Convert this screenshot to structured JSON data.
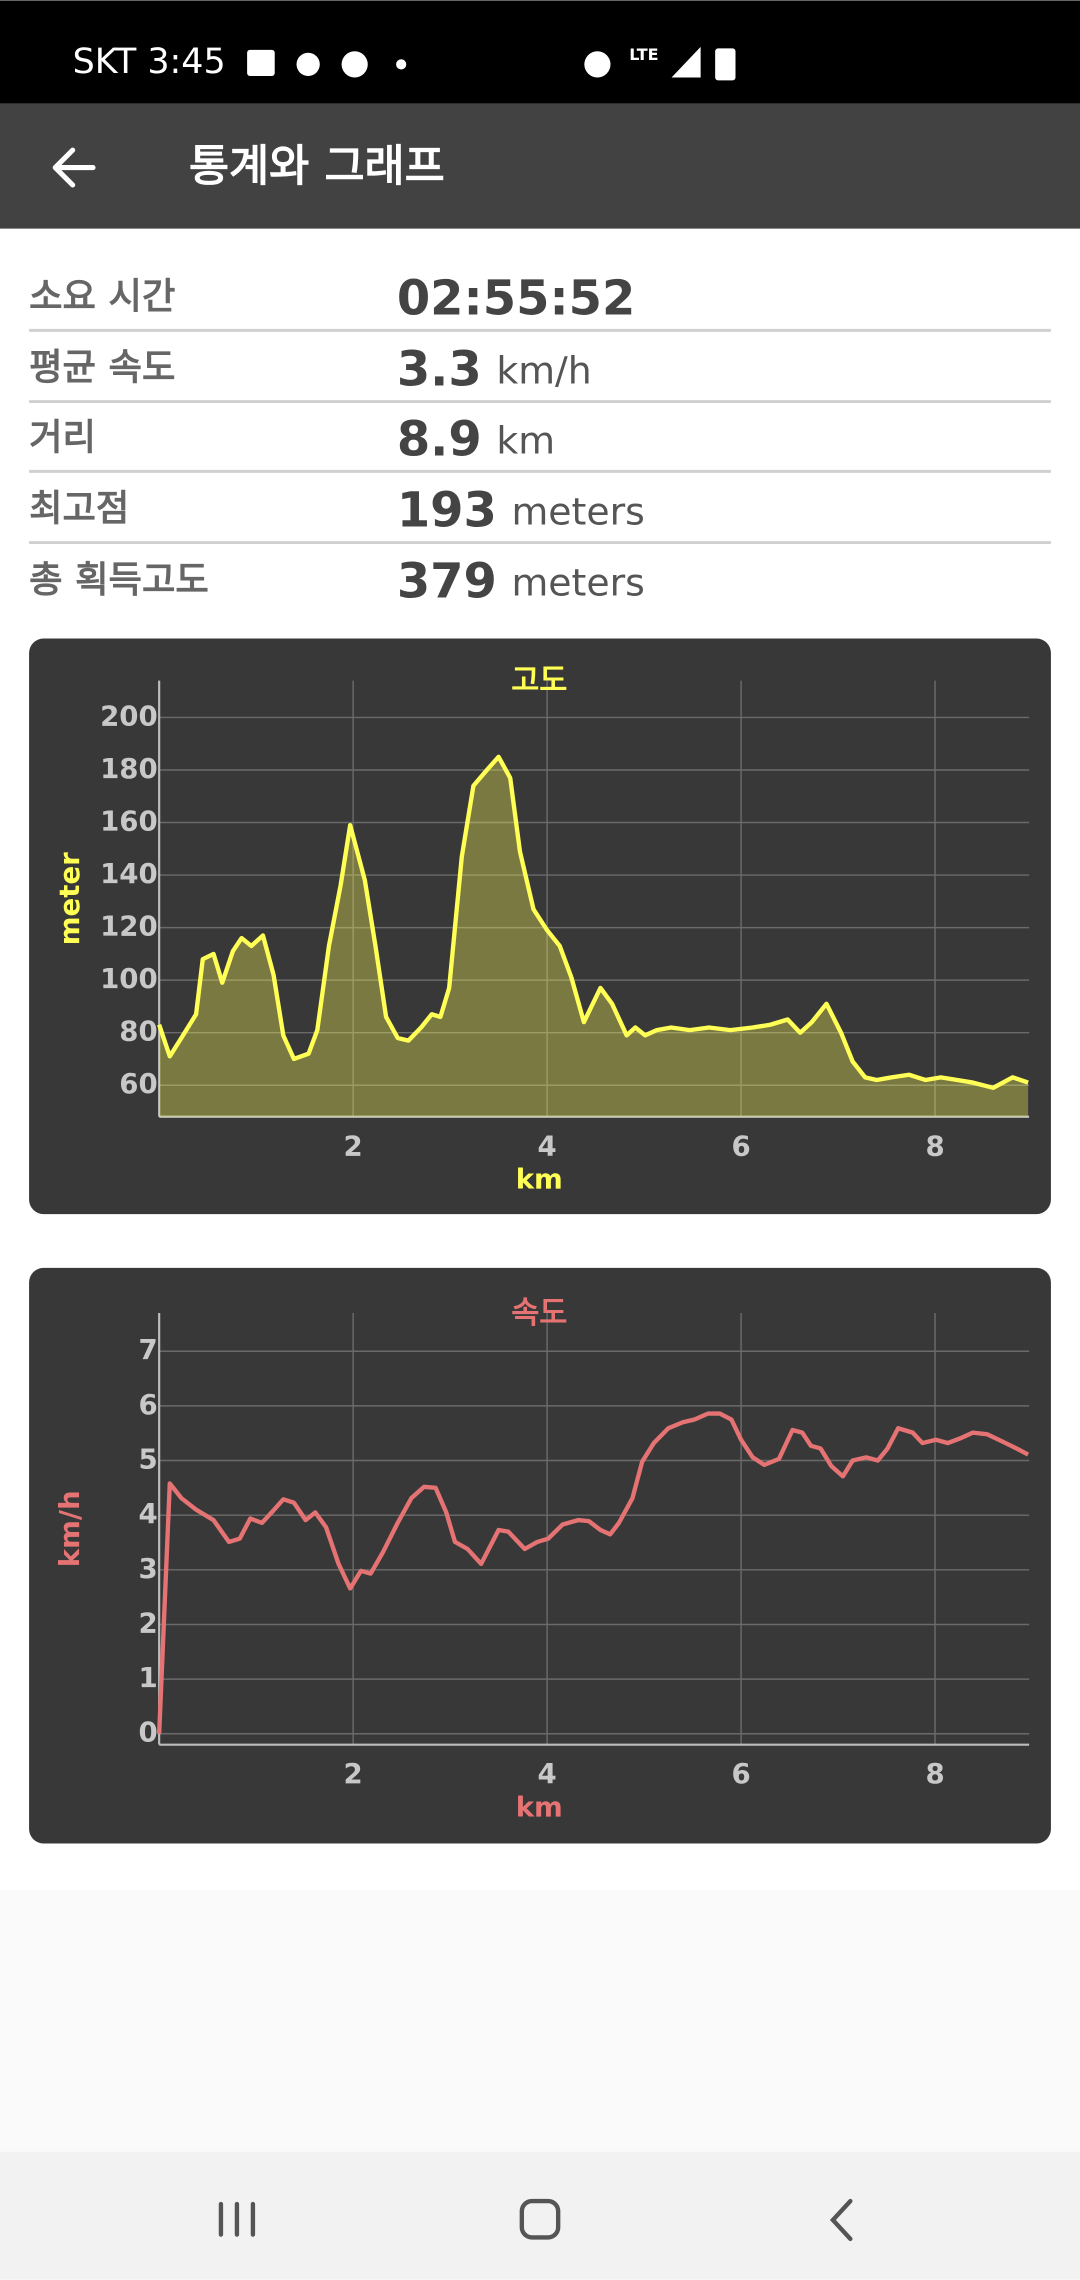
{
  "status_bar": {
    "carrier_time": "SKT 3:45",
    "network": "LTE"
  },
  "app_bar": {
    "title": "통계와 그래프"
  },
  "stats": [
    {
      "label": "소요 시간",
      "value": "02:55:52"
    },
    {
      "label": "평균 속도",
      "value": 3.3,
      "unit": "km/h"
    },
    {
      "label": "거리",
      "value": 8.9,
      "unit": "km"
    },
    {
      "label": "최고점",
      "value": 193,
      "unit": "meters"
    },
    {
      "label": "총 획득고도",
      "value": 379,
      "unit": "meters"
    }
  ],
  "chart_data": [
    {
      "type": "area",
      "title": "고도",
      "x_label": "km",
      "y_label": "meter",
      "color": "#ffff55",
      "grid": true,
      "xlim": [
        0,
        8.97
      ],
      "ylim": [
        48,
        214
      ],
      "xticks": [
        2,
        4,
        6,
        8
      ],
      "yticks": [
        60,
        80,
        100,
        120,
        140,
        160,
        180,
        200
      ],
      "x": [
        0,
        0.11,
        0.23,
        0.38,
        0.45,
        0.56,
        0.65,
        0.76,
        0.85,
        0.95,
        1.07,
        1.18,
        1.28,
        1.39,
        1.54,
        1.63,
        1.75,
        1.87,
        1.97,
        2.12,
        2.23,
        2.34,
        2.46,
        2.57,
        2.7,
        2.81,
        2.9,
        2.99,
        3.12,
        3.24,
        3.38,
        3.5,
        3.62,
        3.72,
        3.86,
        4.0,
        4.13,
        4.25,
        4.38,
        4.55,
        4.67,
        4.82,
        4.91,
        5.01,
        5.13,
        5.28,
        5.47,
        5.67,
        5.89,
        6.12,
        6.3,
        6.48,
        6.61,
        6.73,
        6.88,
        7.03,
        7.15,
        7.28,
        7.4,
        7.55,
        7.73,
        7.9,
        8.06,
        8.23,
        8.39,
        8.6,
        8.8,
        8.96
      ],
      "values": [
        83,
        71,
        78,
        87,
        108,
        110,
        99,
        111,
        116,
        113,
        117,
        102,
        79,
        70,
        72,
        81,
        113,
        136,
        159,
        138,
        113,
        86,
        78,
        77,
        82,
        87,
        86,
        97,
        147,
        174,
        180,
        185,
        177,
        149,
        127,
        119,
        113,
        101,
        84,
        97,
        91,
        79,
        82,
        79,
        81,
        82,
        81,
        82,
        81,
        82,
        83,
        85,
        80,
        84,
        91,
        80,
        69,
        63,
        62,
        63,
        64,
        62,
        63,
        62,
        61,
        59,
        63,
        61
      ]
    },
    {
      "type": "line",
      "title": "속도",
      "x_label": "km",
      "y_label": "km/h",
      "color": "#e57373",
      "grid": true,
      "xlim": [
        0,
        8.97
      ],
      "ylim": [
        -0.2,
        7.7
      ],
      "xticks": [
        2,
        4,
        6,
        8
      ],
      "yticks": [
        0,
        1,
        2,
        3,
        4,
        5,
        6,
        7
      ],
      "x": [
        0,
        0.11,
        0.23,
        0.38,
        0.56,
        0.72,
        0.83,
        0.94,
        1.06,
        1.16,
        1.28,
        1.39,
        1.51,
        1.61,
        1.72,
        1.85,
        1.97,
        2.08,
        2.18,
        2.31,
        2.46,
        2.6,
        2.73,
        2.85,
        2.96,
        3.05,
        3.18,
        3.32,
        3.5,
        3.6,
        3.77,
        3.9,
        4.01,
        4.16,
        4.32,
        4.43,
        4.55,
        4.65,
        4.74,
        4.88,
        4.98,
        5.1,
        5.25,
        5.4,
        5.52,
        5.66,
        5.78,
        5.9,
        6.0,
        6.12,
        6.24,
        6.39,
        6.53,
        6.63,
        6.72,
        6.82,
        6.93,
        7.05,
        7.15,
        7.29,
        7.41,
        7.51,
        7.62,
        7.77,
        7.87,
        8.01,
        8.13,
        8.25,
        8.39,
        8.54,
        8.69,
        8.84,
        8.96
      ],
      "values": [
        0,
        4.58,
        4.31,
        4.1,
        3.91,
        3.51,
        3.57,
        3.94,
        3.86,
        4.05,
        4.29,
        4.23,
        3.91,
        4.05,
        3.78,
        3.11,
        2.66,
        2.98,
        2.93,
        3.33,
        3.86,
        4.31,
        4.52,
        4.5,
        4.05,
        3.51,
        3.38,
        3.11,
        3.73,
        3.7,
        3.38,
        3.51,
        3.57,
        3.83,
        3.91,
        3.89,
        3.73,
        3.65,
        3.86,
        4.31,
        4.98,
        5.32,
        5.59,
        5.7,
        5.75,
        5.86,
        5.86,
        5.75,
        5.38,
        5.06,
        4.92,
        5.03,
        5.56,
        5.51,
        5.27,
        5.22,
        4.9,
        4.71,
        5.0,
        5.06,
        5.0,
        5.22,
        5.59,
        5.51,
        5.32,
        5.38,
        5.32,
        5.4,
        5.51,
        5.48,
        5.35,
        5.22,
        5.11
      ]
    }
  ]
}
